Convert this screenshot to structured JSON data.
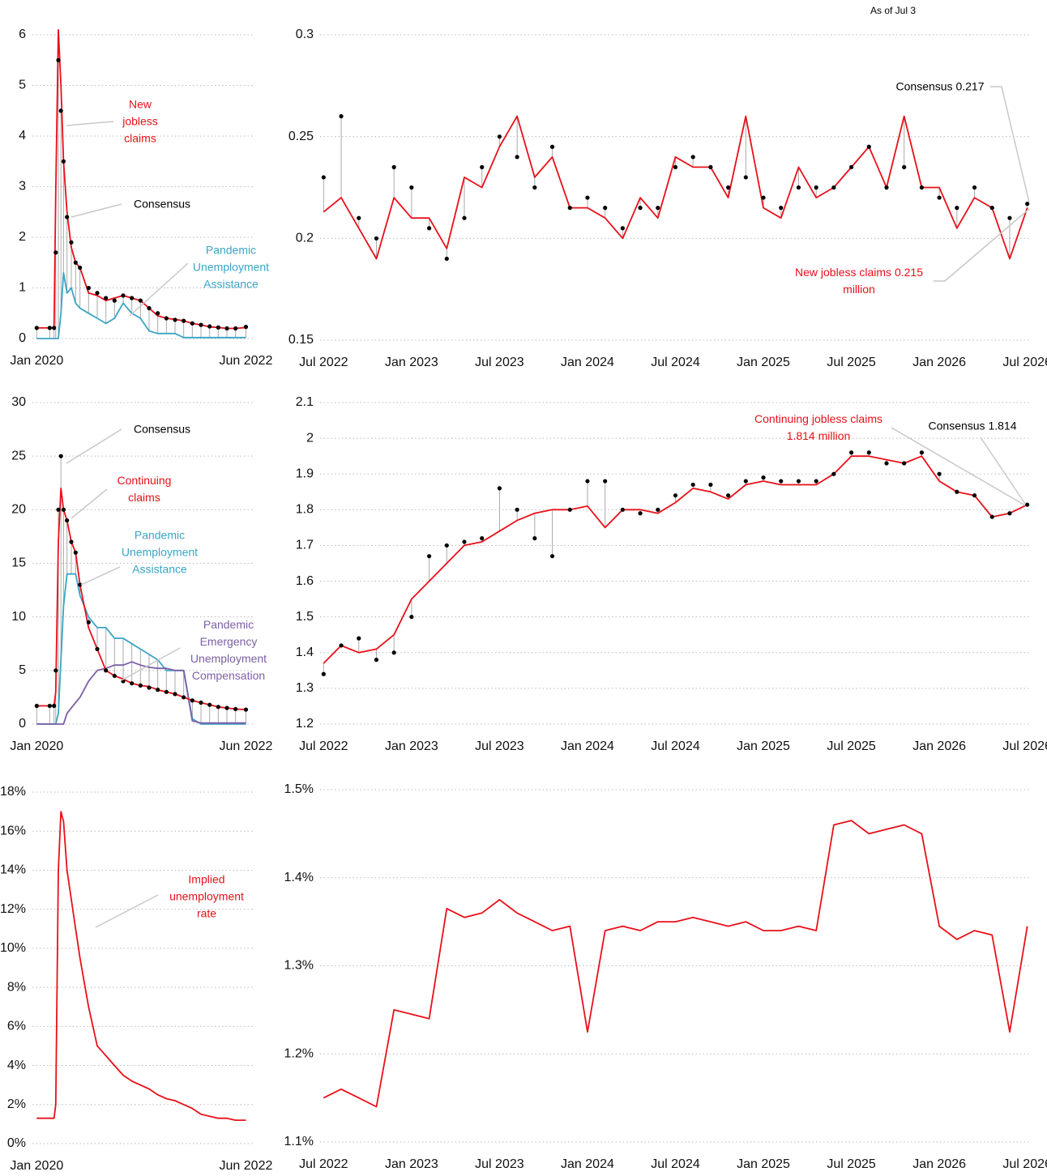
{
  "note": "As of Jul 3",
  "chart_data": [
    {
      "type": "line",
      "x": [
        2020.0,
        2020.15,
        2020.2,
        2020.22,
        2020.25,
        2020.28,
        2020.31,
        2020.35,
        2020.4,
        2020.45,
        2020.5,
        2020.6,
        2020.7,
        2020.8,
        2020.9,
        2021.0,
        2021.1,
        2021.2,
        2021.3,
        2021.4,
        2021.5,
        2021.6,
        2021.7,
        2021.8,
        2021.9,
        2022.0,
        2022.1,
        2022.2,
        2022.3,
        2022.42
      ],
      "xlim": [
        2019.95,
        2022.5
      ],
      "ylim": [
        0,
        6
      ],
      "xticks": [
        {
          "value": 2020,
          "label": "Jan 2020"
        },
        {
          "value": 2022.42,
          "label": "Jun 2022"
        }
      ],
      "yticks": [
        0,
        1,
        2,
        3,
        4,
        5,
        6
      ],
      "grid": true,
      "connectors": true,
      "series": [
        {
          "name": "Pandemic Unemployment Assistance",
          "color": "#3aa5c6",
          "values": [
            0,
            0,
            0,
            0,
            0,
            0.5,
            1.3,
            0.9,
            1.0,
            0.7,
            0.6,
            0.5,
            0.4,
            0.3,
            0.4,
            0.7,
            0.5,
            0.4,
            0.15,
            0.1,
            0.1,
            0.1,
            0.02,
            0.02,
            0.02,
            0.02,
            0.02,
            0.02,
            0.02,
            0.02
          ]
        },
        {
          "name": "New jobless claims",
          "color": "#e8101a",
          "values": [
            0.21,
            0.21,
            0.21,
            2.9,
            6.1,
            5.0,
            3.5,
            2.5,
            1.8,
            1.5,
            1.4,
            0.9,
            0.85,
            0.75,
            0.8,
            0.85,
            0.8,
            0.75,
            0.6,
            0.45,
            0.4,
            0.38,
            0.35,
            0.3,
            0.27,
            0.23,
            0.22,
            0.2,
            0.2,
            0.22
          ]
        },
        {
          "name": "Consensus",
          "color": "#000000",
          "markers": true,
          "values": [
            0.21,
            0.21,
            0.21,
            1.7,
            5.5,
            4.5,
            3.5,
            2.4,
            1.9,
            1.5,
            1.4,
            1.0,
            0.9,
            0.8,
            0.75,
            0.85,
            0.8,
            0.75,
            0.6,
            0.5,
            0.4,
            0.37,
            0.35,
            0.3,
            0.27,
            0.24,
            0.22,
            0.2,
            0.2,
            0.23
          ]
        }
      ]
    },
    {
      "type": "line",
      "x": [
        2022.5,
        2022.6,
        2022.7,
        2022.8,
        2022.9,
        2023.0,
        2023.1,
        2023.2,
        2023.3,
        2023.4,
        2023.5,
        2023.6,
        2023.7,
        2023.8,
        2023.9,
        2024.0,
        2024.1,
        2024.2,
        2024.3,
        2024.4,
        2024.5,
        2024.6,
        2024.7,
        2024.8,
        2024.9,
        2025.0,
        2025.1,
        2025.2,
        2025.3,
        2025.4,
        2025.5,
        2025.6,
        2025.7,
        2025.8,
        2025.9,
        2026.0,
        2026.1,
        2026.2,
        2026.3,
        2026.4,
        2026.5
      ],
      "xlim": [
        2022.48,
        2026.52
      ],
      "ylim": [
        0.15,
        0.3
      ],
      "xticks": [
        {
          "value": 2022.5,
          "label": "Jul 2022"
        },
        {
          "value": 2023.0,
          "label": "Jan 2023"
        },
        {
          "value": 2023.5,
          "label": "Jul 2023"
        },
        {
          "value": 2024.0,
          "label": "Jan 2024"
        },
        {
          "value": 2024.5,
          "label": "Jul 2024"
        },
        {
          "value": 2025.0,
          "label": "Jan 2025"
        },
        {
          "value": 2025.5,
          "label": "Jul 2025"
        },
        {
          "value": 2026.0,
          "label": "Jan 2026"
        },
        {
          "value": 2026.5,
          "label": "Jul 2026"
        }
      ],
      "yticks": [
        0.15,
        0.2,
        0.25,
        0.3
      ],
      "grid": true,
      "connectors": true,
      "annotations": [
        "Consensus 0.217",
        "New jobless claims 0.215 million"
      ],
      "series": [
        {
          "color": "#e8101a",
          "values": [
            0.213,
            0.22,
            0.205,
            0.19,
            0.22,
            0.21,
            0.21,
            0.195,
            0.23,
            0.225,
            0.245,
            0.26,
            0.23,
            0.24,
            0.215,
            0.215,
            0.21,
            0.2,
            0.22,
            0.21,
            0.24,
            0.235,
            0.235,
            0.22,
            0.26,
            0.215,
            0.21,
            0.235,
            0.22,
            0.225,
            0.235,
            0.245,
            0.225,
            0.26,
            0.225,
            0.225,
            0.205,
            0.22,
            0.215,
            0.19,
            0.215
          ]
        },
        {
          "color": "#000000",
          "markers": true,
          "values": [
            0.23,
            0.26,
            0.21,
            0.2,
            0.235,
            0.225,
            0.205,
            0.19,
            0.21,
            0.235,
            0.25,
            0.24,
            0.225,
            0.245,
            0.215,
            0.22,
            0.215,
            0.205,
            0.215,
            0.215,
            0.235,
            0.24,
            0.235,
            0.225,
            0.23,
            0.22,
            0.215,
            0.225,
            0.225,
            0.225,
            0.235,
            0.245,
            0.225,
            0.235,
            0.225,
            0.22,
            0.215,
            0.225,
            0.215,
            0.21,
            0.217
          ]
        }
      ]
    },
    {
      "type": "line",
      "x": [
        2020.0,
        2020.15,
        2020.2,
        2020.22,
        2020.25,
        2020.28,
        2020.31,
        2020.35,
        2020.4,
        2020.45,
        2020.5,
        2020.6,
        2020.7,
        2020.8,
        2020.9,
        2021.0,
        2021.1,
        2021.2,
        2021.3,
        2021.4,
        2021.5,
        2021.6,
        2021.7,
        2021.8,
        2021.9,
        2022.0,
        2022.1,
        2022.2,
        2022.3,
        2022.42
      ],
      "xlim": [
        2019.95,
        2022.5
      ],
      "ylim": [
        0,
        30
      ],
      "xticks": [
        {
          "value": 2020,
          "label": "Jan 2020"
        },
        {
          "value": 2022.42,
          "label": "Jun 2022"
        }
      ],
      "yticks": [
        0,
        5,
        10,
        15,
        20,
        25,
        30
      ],
      "grid": true,
      "connectors": true,
      "series": [
        {
          "name": "Pandemic Unemployment Assistance",
          "color": "#3aa5c6",
          "values": [
            0,
            0,
            0,
            0,
            1,
            6,
            11,
            14,
            14,
            14,
            12,
            10,
            9,
            9,
            8,
            8,
            7.5,
            7,
            6.5,
            6,
            5,
            5,
            5,
            0.5,
            0,
            0,
            0,
            0,
            0,
            0
          ]
        },
        {
          "name": "Pandemic Emergency Unemployment Compensation",
          "color": "#7d5fa6",
          "values": [
            0,
            0,
            0,
            0,
            0,
            0,
            0,
            1,
            1.5,
            2,
            2.5,
            4,
            5,
            5.2,
            5.5,
            5.5,
            5.8,
            5.5,
            5.3,
            5.2,
            5.2,
            5,
            5,
            0.3,
            0.1,
            0.1,
            0.1,
            0.1,
            0.1,
            0.1
          ]
        },
        {
          "name": "Continuing claims",
          "color": "#e8101a",
          "values": [
            1.7,
            1.7,
            1.7,
            3,
            17,
            22,
            20,
            19,
            17,
            16,
            13,
            9,
            7,
            5,
            4.5,
            4.2,
            3.8,
            3.6,
            3.5,
            3.2,
            3,
            2.8,
            2.5,
            2.2,
            2,
            1.8,
            1.6,
            1.5,
            1.4,
            1.35
          ]
        },
        {
          "name": "Consensus",
          "color": "#000000",
          "markers": true,
          "values": [
            1.7,
            1.7,
            1.7,
            5,
            20,
            25,
            20,
            19,
            17,
            16,
            13,
            9.5,
            7,
            5,
            4.5,
            4,
            3.8,
            3.6,
            3.4,
            3.2,
            3,
            2.8,
            2.5,
            2.2,
            2,
            1.8,
            1.6,
            1.5,
            1.4,
            1.35
          ]
        }
      ]
    },
    {
      "type": "line",
      "x": [
        2022.5,
        2022.6,
        2022.7,
        2022.8,
        2022.9,
        2023.0,
        2023.1,
        2023.2,
        2023.3,
        2023.4,
        2023.5,
        2023.6,
        2023.7,
        2023.8,
        2023.9,
        2024.0,
        2024.1,
        2024.2,
        2024.3,
        2024.4,
        2024.5,
        2024.6,
        2024.7,
        2024.8,
        2024.9,
        2025.0,
        2025.1,
        2025.2,
        2025.3,
        2025.4,
        2025.5,
        2025.6,
        2025.7,
        2025.8,
        2025.9,
        2026.0,
        2026.1,
        2026.2,
        2026.3,
        2026.4,
        2026.5
      ],
      "xlim": [
        2022.48,
        2026.52
      ],
      "ylim": [
        1.2,
        2.1
      ],
      "xticks": [
        {
          "value": 2022.5,
          "label": "Jul 2022"
        },
        {
          "value": 2023.0,
          "label": "Jan 2023"
        },
        {
          "value": 2023.5,
          "label": "Jul 2023"
        },
        {
          "value": 2024.0,
          "label": "Jan 2024"
        },
        {
          "value": 2024.5,
          "label": "Jul 2024"
        },
        {
          "value": 2025.0,
          "label": "Jan 2025"
        },
        {
          "value": 2025.5,
          "label": "Jul 2025"
        },
        {
          "value": 2026.0,
          "label": "Jan 2026"
        },
        {
          "value": 2026.5,
          "label": "Jul 2026"
        }
      ],
      "yticks": [
        1.2,
        1.3,
        1.4,
        1.5,
        1.6,
        1.7,
        1.8,
        1.9,
        2,
        2.1
      ],
      "grid": true,
      "connectors": true,
      "annotations": [
        "Continuing jobless claims 1.814 million",
        "Consensus 1.814"
      ],
      "series": [
        {
          "color": "#e8101a",
          "values": [
            1.37,
            1.42,
            1.4,
            1.41,
            1.45,
            1.55,
            1.6,
            1.65,
            1.7,
            1.71,
            1.74,
            1.77,
            1.79,
            1.8,
            1.8,
            1.81,
            1.75,
            1.8,
            1.8,
            1.79,
            1.82,
            1.86,
            1.85,
            1.83,
            1.87,
            1.88,
            1.87,
            1.87,
            1.87,
            1.9,
            1.95,
            1.95,
            1.94,
            1.93,
            1.95,
            1.88,
            1.85,
            1.84,
            1.78,
            1.79,
            1.814
          ]
        },
        {
          "color": "#000000",
          "markers": true,
          "values": [
            1.34,
            1.42,
            1.44,
            1.38,
            1.4,
            1.5,
            1.67,
            1.7,
            1.71,
            1.72,
            1.86,
            1.8,
            1.72,
            1.67,
            1.8,
            1.88,
            1.88,
            1.8,
            1.79,
            1.8,
            1.84,
            1.87,
            1.87,
            1.84,
            1.88,
            1.89,
            1.88,
            1.88,
            1.88,
            1.9,
            1.96,
            1.96,
            1.93,
            1.93,
            1.96,
            1.9,
            1.85,
            1.84,
            1.78,
            1.79,
            1.814
          ]
        }
      ]
    },
    {
      "type": "line",
      "x": [
        2020.0,
        2020.15,
        2020.2,
        2020.22,
        2020.25,
        2020.28,
        2020.31,
        2020.35,
        2020.4,
        2020.45,
        2020.5,
        2020.6,
        2020.7,
        2020.8,
        2020.9,
        2021.0,
        2021.1,
        2021.2,
        2021.3,
        2021.4,
        2021.5,
        2021.6,
        2021.7,
        2021.8,
        2021.9,
        2022.0,
        2022.1,
        2022.2,
        2022.3,
        2022.42
      ],
      "xlim": [
        2019.95,
        2022.5
      ],
      "ylim": [
        0,
        18
      ],
      "xticks": [
        {
          "value": 2020,
          "label": "Jan 2020"
        },
        {
          "value": 2022.42,
          "label": "Jun 2022"
        }
      ],
      "yticks": [
        {
          "value": 0,
          "label": "0%"
        },
        {
          "value": 2,
          "label": "2%"
        },
        {
          "value": 4,
          "label": "4%"
        },
        {
          "value": 6,
          "label": "6%"
        },
        {
          "value": 8,
          "label": "8%"
        },
        {
          "value": 10,
          "label": "10%"
        },
        {
          "value": 12,
          "label": "12%"
        },
        {
          "value": 14,
          "label": "14%"
        },
        {
          "value": 16,
          "label": "16%"
        },
        {
          "value": 18,
          "label": "18%"
        }
      ],
      "grid": true,
      "series": [
        {
          "name": "Implied unemployment rate",
          "color": "#e8101a",
          "values": [
            1.3,
            1.3,
            1.3,
            2,
            14,
            17,
            16.5,
            14,
            12.5,
            11,
            9.5,
            7,
            5,
            4.5,
            4,
            3.5,
            3.2,
            3,
            2.8,
            2.5,
            2.3,
            2.2,
            2,
            1.8,
            1.5,
            1.4,
            1.3,
            1.3,
            1.2,
            1.2
          ]
        }
      ]
    },
    {
      "type": "line",
      "x": [
        2022.5,
        2022.6,
        2022.7,
        2022.8,
        2022.9,
        2023.0,
        2023.1,
        2023.2,
        2023.3,
        2023.4,
        2023.5,
        2023.6,
        2023.7,
        2023.8,
        2023.9,
        2024.0,
        2024.1,
        2024.2,
        2024.3,
        2024.4,
        2024.5,
        2024.6,
        2024.7,
        2024.8,
        2024.9,
        2025.0,
        2025.1,
        2025.2,
        2025.3,
        2025.4,
        2025.5,
        2025.6,
        2025.7,
        2025.8,
        2025.9,
        2026.0,
        2026.1,
        2026.2,
        2026.3,
        2026.4,
        2026.5
      ],
      "xlim": [
        2022.48,
        2026.52
      ],
      "ylim": [
        1.1,
        1.5
      ],
      "xticks": [
        {
          "value": 2022.5,
          "label": "Jul 2022"
        },
        {
          "value": 2023.0,
          "label": "Jan 2023"
        },
        {
          "value": 2023.5,
          "label": "Jul 2023"
        },
        {
          "value": 2024.0,
          "label": "Jan 2024"
        },
        {
          "value": 2024.5,
          "label": "Jul 2024"
        },
        {
          "value": 2025.0,
          "label": "Jan 2025"
        },
        {
          "value": 2025.5,
          "label": "Jul 2025"
        },
        {
          "value": 2026.0,
          "label": "Jan 2026"
        },
        {
          "value": 2026.5,
          "label": "Jul 2026"
        }
      ],
      "yticks": [
        {
          "value": 1.1,
          "label": "1.1%"
        },
        {
          "value": 1.2,
          "label": "1.2%"
        },
        {
          "value": 1.3,
          "label": "1.3%"
        },
        {
          "value": 1.4,
          "label": "1.4%"
        },
        {
          "value": 1.5,
          "label": "1.5%"
        }
      ],
      "grid": true,
      "series": [
        {
          "color": "#e8101a",
          "values": [
            1.15,
            1.16,
            1.15,
            1.14,
            1.25,
            1.245,
            1.24,
            1.365,
            1.355,
            1.36,
            1.375,
            1.36,
            1.35,
            1.34,
            1.345,
            1.225,
            1.34,
            1.345,
            1.34,
            1.35,
            1.35,
            1.355,
            1.35,
            1.345,
            1.35,
            1.34,
            1.34,
            1.345,
            1.34,
            1.46,
            1.465,
            1.45,
            1.455,
            1.46,
            1.45,
            1.345,
            1.33,
            1.34,
            1.335,
            1.225,
            1.345
          ]
        }
      ]
    }
  ]
}
